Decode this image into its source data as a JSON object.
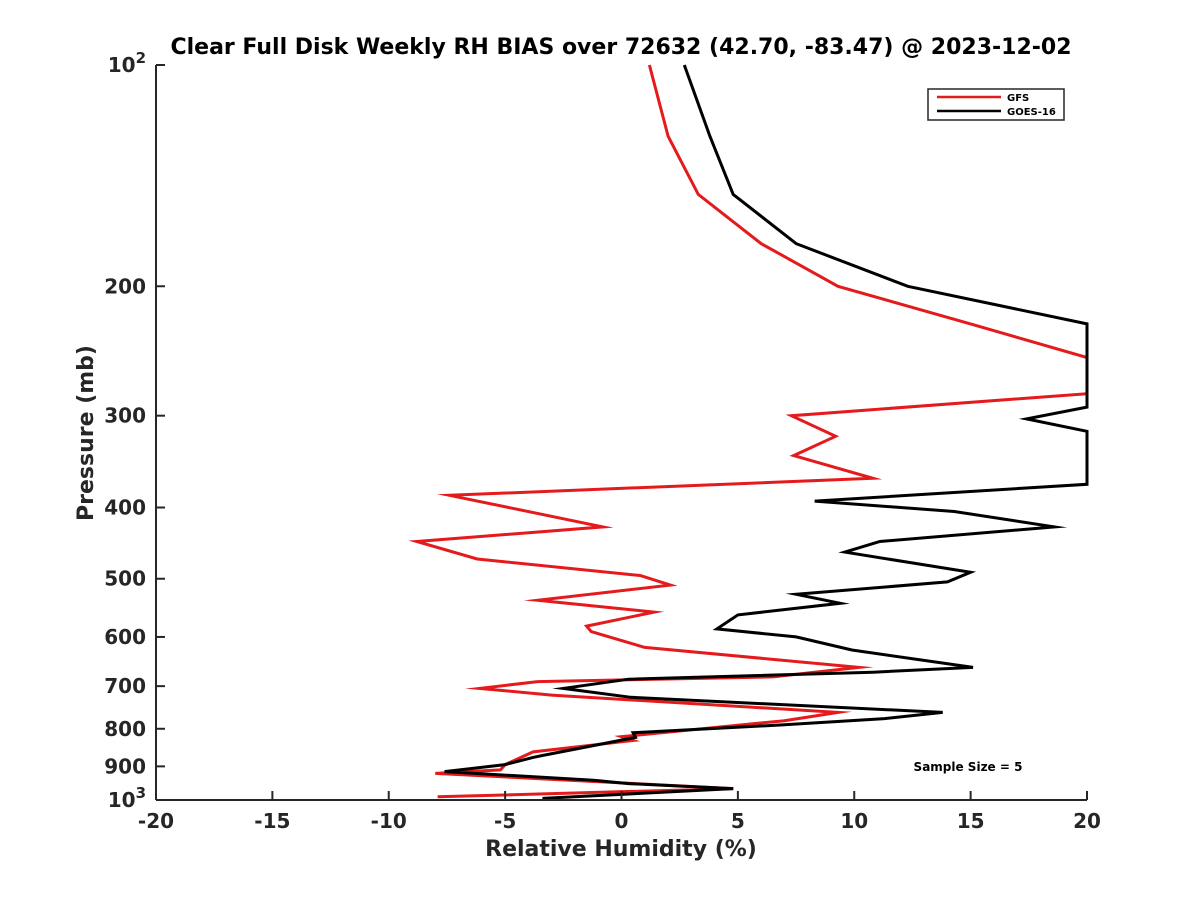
{
  "chart_data": {
    "type": "line",
    "title": "Clear Full Disk Weekly RH BIAS over 72632 (42.70, -83.47) @ 2023-12-02",
    "xlabel": "Relative Humidity (%)",
    "ylabel": "Pressure (mb)",
    "xlim": [
      -20,
      20
    ],
    "ylim": [
      100,
      1000
    ],
    "yscale": "log",
    "y_reversed": true,
    "grid": false,
    "legend_position": "top-right",
    "x_ticks": [
      "-20",
      "-15",
      "-10",
      "-5",
      "0",
      "5",
      "10",
      "15",
      "20"
    ],
    "x_tick_values": [
      -20,
      -15,
      -10,
      -5,
      0,
      5,
      10,
      15,
      20
    ],
    "y_ticks": [
      {
        "value": 100,
        "base": "10",
        "exp": "2"
      },
      {
        "value": 200,
        "label": "200"
      },
      {
        "value": 300,
        "label": "300"
      },
      {
        "value": 400,
        "label": "400"
      },
      {
        "value": 500,
        "label": "500"
      },
      {
        "value": 600,
        "label": "600"
      },
      {
        "value": 700,
        "label": "700"
      },
      {
        "value": 800,
        "label": "800"
      },
      {
        "value": 900,
        "label": "900"
      },
      {
        "value": 1000,
        "base": "10",
        "exp": "3"
      }
    ],
    "series": [
      {
        "name": "GFS",
        "color": "#e41a1c",
        "points": [
          [
            1.2,
            100
          ],
          [
            2.0,
            125
          ],
          [
            3.3,
            150
          ],
          [
            6.0,
            175
          ],
          [
            9.3,
            200
          ],
          [
            15.0,
            225
          ],
          [
            20.0,
            250
          ],
          [
            20.0,
            280
          ],
          [
            7.3,
            300
          ],
          [
            9.2,
            320
          ],
          [
            7.4,
            340
          ],
          [
            10.8,
            365
          ],
          [
            -7.4,
            385
          ],
          [
            -0.8,
            425
          ],
          [
            -8.8,
            445
          ],
          [
            -6.2,
            470
          ],
          [
            0.8,
            495
          ],
          [
            2.1,
            510
          ],
          [
            -3.6,
            535
          ],
          [
            1.4,
            555
          ],
          [
            -1.5,
            580
          ],
          [
            -1.3,
            590
          ],
          [
            1.0,
            620
          ],
          [
            10.2,
            660
          ],
          [
            6.5,
            680
          ],
          [
            -3.6,
            690
          ],
          [
            -6.1,
            705
          ],
          [
            -3.0,
            720
          ],
          [
            9.3,
            760
          ],
          [
            7.0,
            780
          ],
          [
            0.0,
            820
          ],
          [
            0.5,
            830
          ],
          [
            -3.8,
            860
          ],
          [
            -5.0,
            895
          ],
          [
            -5.2,
            910
          ],
          [
            -8.0,
            920
          ],
          [
            4.8,
            965
          ],
          [
            -7.9,
            990
          ]
        ]
      },
      {
        "name": "GOES-16",
        "color": "#000000",
        "points": [
          [
            2.7,
            100
          ],
          [
            3.8,
            125
          ],
          [
            4.8,
            150
          ],
          [
            7.5,
            175
          ],
          [
            12.3,
            200
          ],
          [
            20.0,
            225
          ],
          [
            20.0,
            292
          ],
          [
            17.4,
            303
          ],
          [
            20.0,
            315
          ],
          [
            20.0,
            372
          ],
          [
            8.3,
            392
          ],
          [
            14.3,
            405
          ],
          [
            18.6,
            425
          ],
          [
            11.1,
            445
          ],
          [
            9.6,
            460
          ],
          [
            15.0,
            490
          ],
          [
            14.0,
            505
          ],
          [
            7.5,
            525
          ],
          [
            9.4,
            540
          ],
          [
            5.0,
            560
          ],
          [
            4.1,
            585
          ],
          [
            7.5,
            600
          ],
          [
            9.9,
            625
          ],
          [
            15.1,
            660
          ],
          [
            10.8,
            670
          ],
          [
            0.3,
            685
          ],
          [
            -2.5,
            705
          ],
          [
            0.4,
            725
          ],
          [
            13.8,
            760
          ],
          [
            11.3,
            775
          ],
          [
            7.0,
            790
          ],
          [
            0.5,
            810
          ],
          [
            0.6,
            822
          ],
          [
            -3.4,
            870
          ],
          [
            -3.8,
            875
          ],
          [
            -5.0,
            895
          ],
          [
            -7.6,
            915
          ],
          [
            -1.2,
            940
          ],
          [
            0.3,
            950
          ],
          [
            4.8,
            965
          ],
          [
            -3.4,
            995
          ]
        ]
      }
    ],
    "annotations": [
      {
        "text": "Sample Size = 5",
        "x": 17,
        "y": 900
      }
    ]
  }
}
